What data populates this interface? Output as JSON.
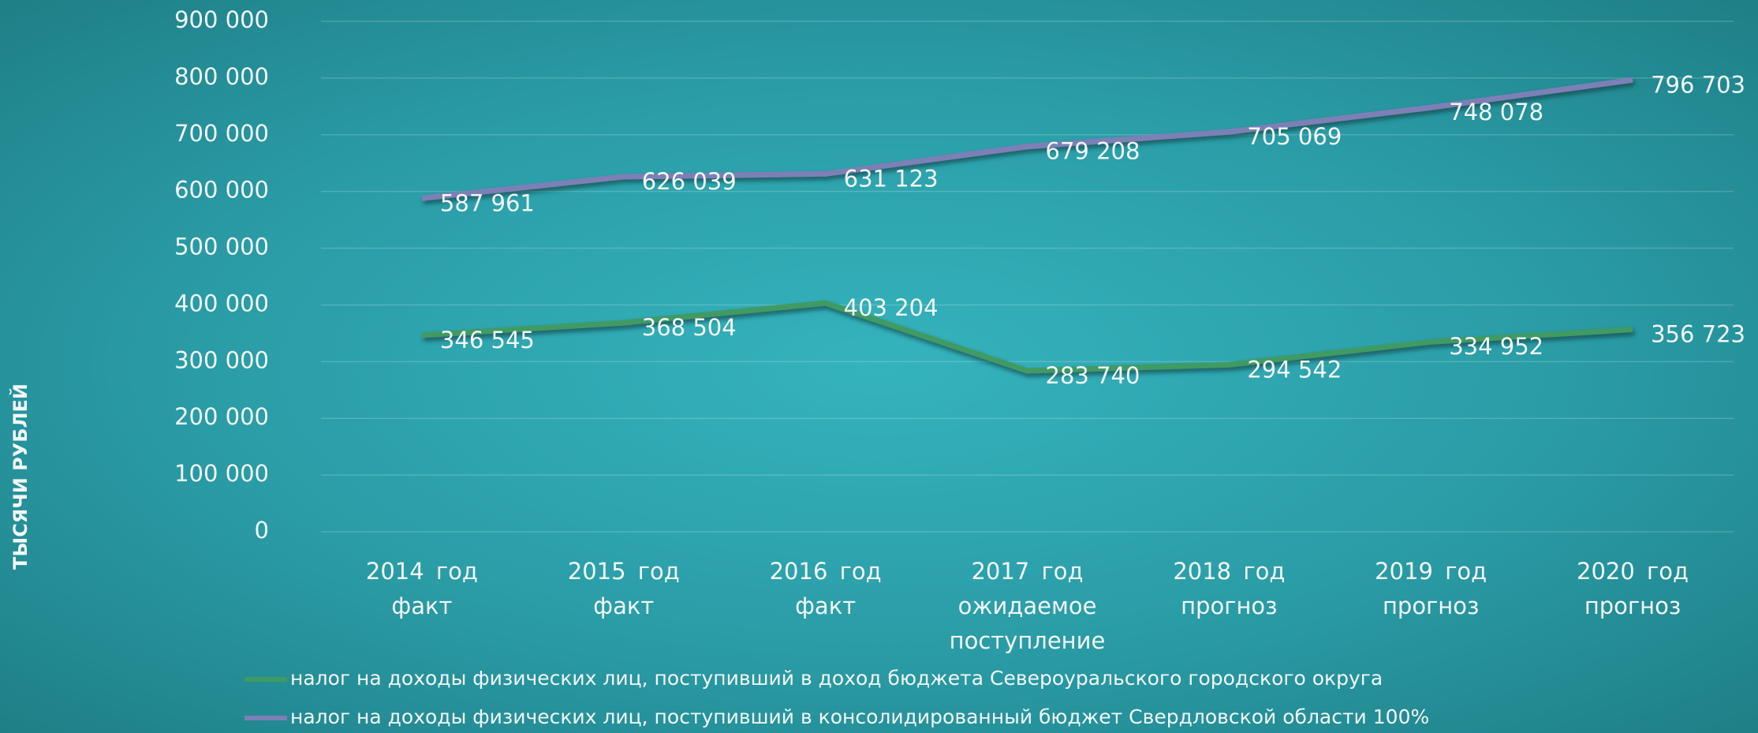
{
  "chart_data": {
    "type": "line",
    "y_axis_label": "ТЫСЯЧИ РУБЛЕЙ",
    "categories": [
      "2014 год факт",
      "2015 год факт",
      "2016 год факт",
      "2017 год ожидаемое поступление",
      "2018 год прогноз",
      "2019 год прогноз",
      "2020 год прогноз"
    ],
    "series": [
      {
        "name": "налог на доходы физических лиц, поступивший в доход бюджета Североуральского городского округа",
        "color": "#3f9a63",
        "values": [
          346545,
          368504,
          403204,
          283740,
          294542,
          334952,
          356723
        ],
        "value_labels": [
          "346 545",
          "368 504",
          "403 204",
          "283 740",
          "294 542",
          "334 952",
          "356 723"
        ]
      },
      {
        "name": "налог на доходы физических лиц, поступивший в консолидированный бюджет Свердловской области 100%",
        "color": "#7c80b6",
        "values": [
          587961,
          626039,
          631123,
          679208,
          705069,
          748078,
          796703
        ],
        "value_labels": [
          "587 961",
          "626 039",
          "631 123",
          "679 208",
          "705 069",
          "748 078",
          "796 703"
        ]
      }
    ],
    "ylim": [
      0,
      900000
    ],
    "yticks": [
      0,
      {
        "value": 100000,
        "label": "100 000"
      },
      {
        "value": 200000,
        "label": "200 000"
      },
      {
        "value": 300000,
        "label": "300 000"
      },
      {
        "value": 400000,
        "label": "400 000"
      },
      {
        "value": 500000,
        "label": "500 000"
      },
      {
        "value": 600000,
        "label": "600 000"
      },
      {
        "value": 700000,
        "label": "700 000"
      },
      {
        "value": 800000,
        "label": "800 000"
      },
      {
        "value": 900000,
        "label": "900 000"
      }
    ],
    "grid": true
  }
}
